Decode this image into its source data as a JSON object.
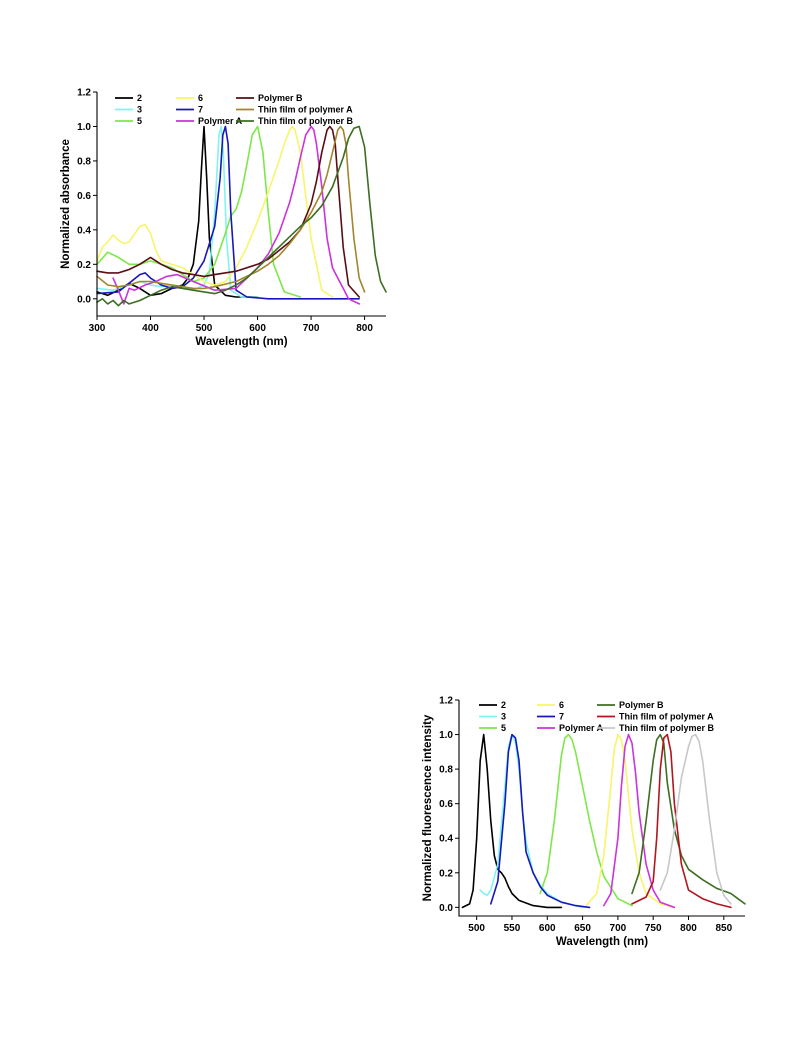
{
  "chart_data": [
    {
      "type": "line",
      "xlabel": "Wavelength (nm)",
      "ylabel": "Normalized absorbance",
      "xlim": [
        300,
        840
      ],
      "ylim": [
        -0.1,
        1.2
      ],
      "xticks": [
        300,
        400,
        500,
        600,
        700,
        800
      ],
      "yticks": [
        0.0,
        0.2,
        0.4,
        0.6,
        0.8,
        1.0,
        1.2
      ],
      "xtick_labels": [
        "300",
        "400",
        "500",
        "600",
        "700",
        "800"
      ],
      "ytick_labels": [
        "0.0",
        "0.2",
        "0.4",
        "0.6",
        "0.8",
        "1.0",
        "1.2"
      ],
      "grid": false,
      "legend_position": "top",
      "series": [
        {
          "name": "2",
          "color": "#000000",
          "x": [
            300,
            320,
            340,
            360,
            380,
            400,
            420,
            440,
            460,
            470,
            480,
            490,
            495,
            500,
            505,
            510,
            520,
            540,
            560,
            600
          ],
          "y": [
            0.04,
            0.02,
            0.05,
            0.09,
            0.06,
            0.02,
            0.03,
            0.06,
            0.08,
            0.12,
            0.2,
            0.45,
            0.75,
            1.0,
            0.7,
            0.35,
            0.08,
            0.02,
            0.01,
            0.01
          ]
        },
        {
          "name": "3",
          "color": "#7ff5f0",
          "x": [
            300,
            330,
            360,
            380,
            400,
            420,
            440,
            460,
            480,
            500,
            510,
            520,
            528,
            532,
            536,
            542,
            550,
            570,
            600
          ],
          "y": [
            0.06,
            0.05,
            0.08,
            0.1,
            0.08,
            0.07,
            0.08,
            0.07,
            0.05,
            0.08,
            0.15,
            0.5,
            0.95,
            1.0,
            0.85,
            0.35,
            0.05,
            0.01,
            0.01
          ]
        },
        {
          "name": "5",
          "color": "#7ee84a",
          "x": [
            300,
            320,
            340,
            360,
            380,
            400,
            420,
            440,
            460,
            480,
            500,
            520,
            540,
            550,
            560,
            570,
            580,
            590,
            600,
            610,
            620,
            630,
            650,
            680
          ],
          "y": [
            0.2,
            0.27,
            0.24,
            0.2,
            0.2,
            0.22,
            0.2,
            0.18,
            0.14,
            0.1,
            0.12,
            0.2,
            0.38,
            0.48,
            0.52,
            0.62,
            0.78,
            0.95,
            1.0,
            0.85,
            0.5,
            0.2,
            0.04,
            0.01
          ]
        },
        {
          "name": "6",
          "color": "#f7f56a",
          "x": [
            300,
            310,
            320,
            330,
            340,
            350,
            360,
            380,
            390,
            400,
            410,
            420,
            440,
            460,
            480,
            500,
            520,
            540,
            560,
            580,
            600,
            620,
            640,
            650,
            660,
            665,
            670,
            680,
            690,
            700,
            720,
            740
          ],
          "y": [
            0.22,
            0.3,
            0.33,
            0.37,
            0.34,
            0.32,
            0.33,
            0.42,
            0.43,
            0.38,
            0.28,
            0.22,
            0.2,
            0.18,
            0.14,
            0.1,
            0.08,
            0.1,
            0.18,
            0.3,
            0.45,
            0.62,
            0.8,
            0.9,
            0.98,
            1.0,
            0.98,
            0.85,
            0.6,
            0.35,
            0.05,
            0.01
          ]
        },
        {
          "name": "7",
          "color": "#1818b8",
          "x": [
            300,
            340,
            380,
            390,
            400,
            420,
            440,
            460,
            480,
            500,
            510,
            520,
            530,
            535,
            540,
            545,
            550,
            560,
            580,
            620,
            700,
            790
          ],
          "y": [
            0.03,
            0.04,
            0.14,
            0.15,
            0.12,
            0.08,
            0.06,
            0.07,
            0.12,
            0.22,
            0.32,
            0.42,
            0.7,
            0.95,
            1.0,
            0.9,
            0.5,
            0.05,
            0.01,
            0.0,
            0.0,
            0.0
          ]
        },
        {
          "name": "Polymer A",
          "color": "#cc33dd",
          "x": [
            330,
            340,
            350,
            360,
            370,
            390,
            410,
            430,
            450,
            480,
            520,
            560,
            600,
            620,
            640,
            660,
            670,
            680,
            690,
            700,
            705,
            710,
            720,
            730,
            740,
            750,
            760,
            770,
            790
          ],
          "y": [
            0.12,
            0.05,
            -0.03,
            0.06,
            0.05,
            0.08,
            0.1,
            0.13,
            0.14,
            0.1,
            0.05,
            0.06,
            0.18,
            0.26,
            0.38,
            0.56,
            0.68,
            0.82,
            0.95,
            1.0,
            0.98,
            0.9,
            0.65,
            0.35,
            0.18,
            0.12,
            0.06,
            0.0,
            -0.03
          ]
        },
        {
          "name": "Polymer B",
          "color": "#5a0e14",
          "x": [
            300,
            320,
            340,
            360,
            380,
            400,
            420,
            440,
            460,
            480,
            500,
            520,
            560,
            600,
            620,
            640,
            660,
            680,
            700,
            710,
            720,
            730,
            735,
            740,
            745,
            750,
            760,
            770,
            790
          ],
          "y": [
            0.16,
            0.15,
            0.15,
            0.17,
            0.2,
            0.24,
            0.2,
            0.17,
            0.15,
            0.14,
            0.13,
            0.14,
            0.16,
            0.2,
            0.23,
            0.28,
            0.33,
            0.4,
            0.55,
            0.68,
            0.85,
            0.98,
            1.0,
            0.98,
            0.9,
            0.7,
            0.3,
            0.08,
            0.01
          ]
        },
        {
          "name": "Thin film of polymer A",
          "color": "#a3852e",
          "x": [
            300,
            320,
            340,
            360,
            380,
            400,
            420,
            440,
            460,
            480,
            500,
            520,
            560,
            600,
            620,
            640,
            660,
            680,
            700,
            720,
            730,
            740,
            750,
            755,
            760,
            765,
            770,
            780,
            790,
            800
          ],
          "y": [
            0.13,
            0.08,
            0.07,
            0.08,
            0.1,
            0.1,
            0.09,
            0.08,
            0.07,
            0.06,
            0.06,
            0.07,
            0.1,
            0.16,
            0.2,
            0.25,
            0.32,
            0.4,
            0.5,
            0.62,
            0.72,
            0.85,
            0.98,
            1.0,
            0.98,
            0.9,
            0.7,
            0.35,
            0.12,
            0.04
          ]
        },
        {
          "name": "Thin film of polymer B",
          "color": "#3d6e22",
          "x": [
            300,
            310,
            320,
            330,
            340,
            350,
            360,
            380,
            400,
            420,
            440,
            460,
            480,
            500,
            520,
            540,
            560,
            580,
            600,
            620,
            640,
            660,
            680,
            700,
            720,
            740,
            760,
            770,
            780,
            790,
            800,
            810,
            820,
            830,
            840
          ],
          "y": [
            -0.02,
            0.0,
            -0.03,
            -0.01,
            -0.04,
            -0.01,
            -0.03,
            -0.01,
            0.02,
            0.05,
            0.07,
            0.06,
            0.05,
            0.04,
            0.03,
            0.05,
            0.08,
            0.12,
            0.18,
            0.24,
            0.3,
            0.36,
            0.42,
            0.47,
            0.54,
            0.65,
            0.82,
            0.93,
            0.99,
            1.0,
            0.88,
            0.55,
            0.25,
            0.1,
            0.04
          ]
        }
      ]
    },
    {
      "type": "line",
      "xlabel": "Wavelength (nm)",
      "ylabel": "Normalized fluorescence intensity",
      "xlim": [
        475,
        880
      ],
      "ylim": [
        -0.05,
        1.2
      ],
      "xticks": [
        500,
        550,
        600,
        650,
        700,
        750,
        800,
        850
      ],
      "yticks": [
        0.0,
        0.2,
        0.4,
        0.6,
        0.8,
        1.0,
        1.2
      ],
      "xtick_labels": [
        "500",
        "550",
        "600",
        "650",
        "700",
        "750",
        "800",
        "850"
      ],
      "ytick_labels": [
        "0.0",
        "0.2",
        "0.4",
        "0.6",
        "0.8",
        "1.0",
        "1.2"
      ],
      "grid": false,
      "legend_position": "top",
      "series": [
        {
          "name": "2",
          "color": "#000000",
          "x": [
            480,
            490,
            495,
            500,
            505,
            510,
            515,
            520,
            525,
            530,
            535,
            540,
            545,
            550,
            560,
            580,
            600,
            620
          ],
          "y": [
            0.0,
            0.02,
            0.1,
            0.4,
            0.85,
            1.0,
            0.8,
            0.5,
            0.3,
            0.22,
            0.2,
            0.17,
            0.12,
            0.08,
            0.04,
            0.01,
            0.0,
            0.0
          ]
        },
        {
          "name": "3",
          "color": "#7ff5f0",
          "x": [
            505,
            510,
            515,
            520,
            530,
            540,
            545,
            550,
            555,
            560,
            565,
            570,
            580,
            590,
            600,
            620,
            650
          ],
          "y": [
            0.1,
            0.08,
            0.07,
            0.1,
            0.25,
            0.7,
            0.93,
            1.0,
            0.95,
            0.8,
            0.55,
            0.38,
            0.2,
            0.13,
            0.08,
            0.03,
            0.0
          ]
        },
        {
          "name": "5",
          "color": "#7ee84a",
          "x": [
            590,
            600,
            610,
            620,
            625,
            630,
            635,
            640,
            650,
            660,
            670,
            680,
            700,
            720
          ],
          "y": [
            0.08,
            0.2,
            0.5,
            0.88,
            0.98,
            1.0,
            0.97,
            0.9,
            0.7,
            0.5,
            0.32,
            0.18,
            0.05,
            0.01
          ]
        },
        {
          "name": "6",
          "color": "#f7f56a",
          "x": [
            655,
            670,
            680,
            690,
            695,
            700,
            705,
            710,
            715,
            720,
            730,
            740,
            760,
            780
          ],
          "y": [
            0.01,
            0.08,
            0.3,
            0.7,
            0.92,
            1.0,
            0.97,
            0.85,
            0.65,
            0.45,
            0.2,
            0.08,
            0.02,
            0.0
          ]
        },
        {
          "name": "7",
          "color": "#1818b8",
          "x": [
            520,
            530,
            540,
            545,
            550,
            555,
            560,
            565,
            570,
            580,
            590,
            600,
            620,
            640,
            660
          ],
          "y": [
            0.02,
            0.15,
            0.6,
            0.9,
            1.0,
            0.98,
            0.85,
            0.55,
            0.32,
            0.2,
            0.12,
            0.07,
            0.03,
            0.01,
            0.0
          ]
        },
        {
          "name": "Polymer A",
          "color": "#cc33dd",
          "x": [
            680,
            690,
            700,
            705,
            710,
            715,
            720,
            725,
            730,
            740,
            750,
            760,
            780
          ],
          "y": [
            0.01,
            0.08,
            0.4,
            0.7,
            0.93,
            1.0,
            0.95,
            0.78,
            0.55,
            0.25,
            0.1,
            0.03,
            0.0
          ]
        },
        {
          "name": "Polymer B",
          "color": "#3d6e22",
          "x": [
            720,
            730,
            740,
            750,
            755,
            760,
            765,
            770,
            780,
            790,
            800,
            820,
            840,
            860,
            870,
            880
          ],
          "y": [
            0.08,
            0.2,
            0.5,
            0.85,
            0.97,
            1.0,
            0.95,
            0.72,
            0.45,
            0.3,
            0.22,
            0.16,
            0.11,
            0.08,
            0.05,
            0.02
          ]
        },
        {
          "name": "Thin film of polymer A",
          "color": "#b3151f",
          "x": [
            720,
            740,
            750,
            755,
            760,
            765,
            770,
            775,
            780,
            790,
            800,
            820,
            840,
            860
          ],
          "y": [
            0.02,
            0.06,
            0.15,
            0.4,
            0.8,
            0.98,
            1.0,
            0.9,
            0.6,
            0.25,
            0.1,
            0.05,
            0.02,
            0.0
          ]
        },
        {
          "name": "Thin film of polymer B",
          "color": "#c8c8c8",
          "x": [
            760,
            770,
            780,
            790,
            800,
            805,
            810,
            815,
            820,
            830,
            840,
            850,
            860
          ],
          "y": [
            0.1,
            0.2,
            0.45,
            0.75,
            0.93,
            0.99,
            1.0,
            0.96,
            0.85,
            0.5,
            0.2,
            0.07,
            0.02
          ]
        }
      ]
    }
  ]
}
